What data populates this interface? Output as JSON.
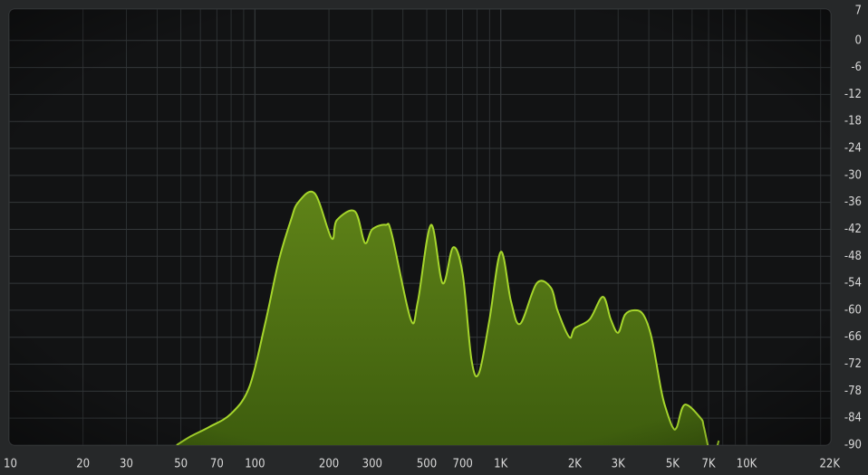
{
  "colors": {
    "background": "#262829",
    "plot_background": "#121314",
    "grid": "#34383a",
    "curve_stroke": "#a6d62c",
    "fill_top": "#5f8318",
    "fill_bottom": "#3b5a0d",
    "tick_text": "#d8d8d8"
  },
  "chart_data": {
    "type": "area",
    "title": "",
    "xlabel": "",
    "ylabel": "",
    "x_scale": "log",
    "xlim": [
      10,
      22000
    ],
    "ylim": [
      -90,
      7
    ],
    "grid": true,
    "x_tick_values": [
      10,
      20,
      30,
      50,
      70,
      100,
      200,
      300,
      500,
      700,
      1000,
      2000,
      3000,
      5000,
      7000,
      10000,
      22000
    ],
    "x_tick_labels": [
      "10",
      "20",
      "30",
      "50",
      "70",
      "100",
      "200",
      "300",
      "500",
      "700",
      "1K",
      "2K",
      "3K",
      "5K",
      "7K",
      "10K",
      "22K"
    ],
    "y_tick_values": [
      7,
      0,
      -6,
      -12,
      -18,
      -24,
      -30,
      -36,
      -42,
      -48,
      -54,
      -60,
      -66,
      -72,
      -78,
      -84,
      -90
    ],
    "y_tick_labels": [
      "7",
      "0",
      "-6",
      "-12",
      "-18",
      "-24",
      "-30",
      "-36",
      "-42",
      "-48",
      "-54",
      "-60",
      "-66",
      "-72",
      "-78",
      "-84",
      "-90"
    ],
    "series": [
      {
        "x": [
          48,
          55,
          65,
          80,
          95,
          110,
          125,
          140,
          150,
          175,
          205,
          215,
          255,
          280,
          300,
          340,
          360,
          430,
          460,
          520,
          580,
          640,
          700,
          760,
          815,
          900,
          1000,
          1100,
          1200,
          1400,
          1600,
          1700,
          1900,
          2000,
          2300,
          2600,
          2800,
          3000,
          3200,
          3500,
          3800,
          4100,
          4500,
          4700,
          5000,
          5200,
          5600,
          6500,
          6700,
          7100,
          7400,
          7700
        ],
        "y": [
          -90,
          -88,
          -86,
          -83,
          -77,
          -63,
          -49,
          -40,
          -36,
          -34,
          -44,
          -40,
          -38,
          -45,
          -42,
          -41,
          -43,
          -62,
          -58,
          -41,
          -54,
          -46,
          -52,
          -71,
          -74,
          -62,
          -47,
          -58,
          -63,
          -54,
          -55,
          -60,
          -66,
          -64,
          -62,
          -57,
          -62,
          -65,
          -61,
          -60,
          -61,
          -66,
          -78,
          -82,
          -86,
          -86,
          -81,
          -84,
          -86,
          -92,
          -92,
          -89
        ]
      }
    ]
  }
}
